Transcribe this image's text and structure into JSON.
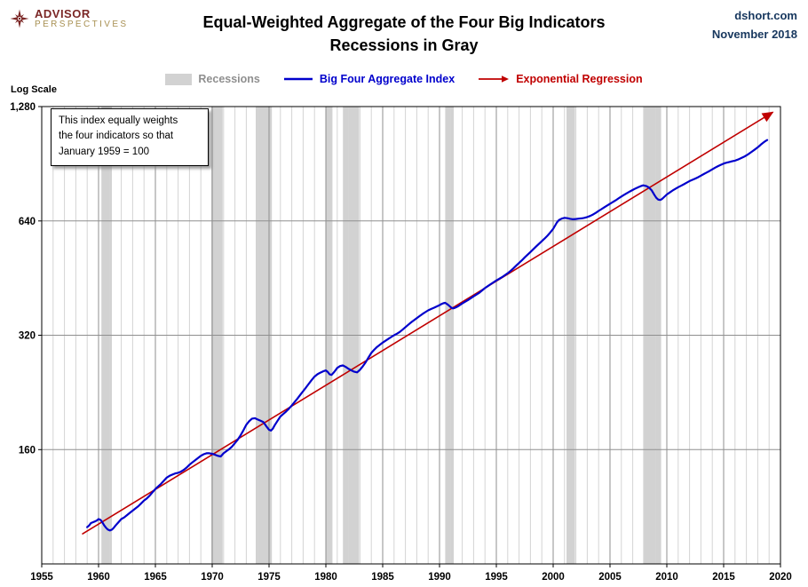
{
  "header": {
    "logo": {
      "line1": "ADVISOR",
      "line2": "PERSPECTIVES",
      "icon": "compass-star-icon",
      "icon_color": "#7b2726"
    },
    "title_line1": "Equal-Weighted Aggregate of the Four Big Indicators",
    "title_line2": "Recessions in Gray",
    "source": "dshort.com",
    "date": "November 2018"
  },
  "legend": {
    "items": [
      {
        "label": "Recessions",
        "type": "band",
        "color": "#d2d2d2",
        "text_color": "#8f8f8f"
      },
      {
        "label": "Big Four Aggregate Index",
        "type": "line",
        "color": "#0000cc",
        "text_color": "#0000cc"
      },
      {
        "label": "Exponential Regression",
        "type": "arrow-line",
        "color": "#c00000",
        "text_color": "#c00000"
      }
    ]
  },
  "axis_note": "Log Scale",
  "annotation": {
    "lines": [
      "This index equally weights",
      "the four indicators  so that",
      "January 1959 = 100"
    ]
  },
  "chart_data": {
    "type": "line",
    "title": "Equal-Weighted Aggregate of the Four Big Indicators (Recessions in Gray)",
    "ylabel": "Index (Log Scale, January 1959 = 100)",
    "xlabel": "",
    "legend_position": "top",
    "grid": {
      "minor_x_interval": 1,
      "major_x_interval": 5,
      "minor_color": "#d4d4d4",
      "major_color": "#8f8f8f"
    },
    "x_axis": {
      "min": 1955,
      "max": 2020,
      "ticks": [
        {
          "value": 1955,
          "label": "1955"
        },
        {
          "value": 1960,
          "label": "1960"
        },
        {
          "value": 1965,
          "label": "1965"
        },
        {
          "value": 1970,
          "label": "1970"
        },
        {
          "value": 1975,
          "label": "1975"
        },
        {
          "value": 1980,
          "label": "1980"
        },
        {
          "value": 1985,
          "label": "1985"
        },
        {
          "value": 1990,
          "label": "1990"
        },
        {
          "value": 1995,
          "label": "1995"
        },
        {
          "value": 2000,
          "label": "2000"
        },
        {
          "value": 2005,
          "label": "2005"
        },
        {
          "value": 2010,
          "label": "2010"
        },
        {
          "value": 2015,
          "label": "2015"
        },
        {
          "value": 2020,
          "label": "2020"
        }
      ]
    },
    "y_axis": {
      "scale": "log2",
      "min": 80,
      "max": 1280,
      "ticks": [
        {
          "value": 1280,
          "label": "1,280"
        },
        {
          "value": 640,
          "label": "640"
        },
        {
          "value": 320,
          "label": "320"
        },
        {
          "value": 160,
          "label": "160"
        }
      ]
    },
    "recession_color": "#d2d2d2",
    "recessions": [
      [
        1960.25,
        1961.17
      ],
      [
        1969.92,
        1970.92
      ],
      [
        1973.83,
        1975.25
      ],
      [
        1980.0,
        1980.58
      ],
      [
        1981.5,
        1982.92
      ],
      [
        1990.5,
        1991.25
      ],
      [
        2001.17,
        2001.92
      ],
      [
        2007.92,
        2009.5
      ]
    ],
    "series": [
      {
        "name": "Exponential Regression",
        "color": "#c00000",
        "width": 1.6,
        "arrow_end": true,
        "points": [
          [
            1958.6,
            96
          ],
          [
            2019.3,
            1235
          ]
        ]
      },
      {
        "name": "Big Four Aggregate Index",
        "color": "#0000cc",
        "width": 2.2,
        "arrow_end": false,
        "points": [
          [
            1959.0,
            100
          ],
          [
            1959.17,
            101
          ],
          [
            1959.33,
            102.5
          ],
          [
            1959.5,
            103
          ],
          [
            1959.67,
            103.5
          ],
          [
            1959.83,
            104
          ],
          [
            1960.0,
            105
          ],
          [
            1960.17,
            104.5
          ],
          [
            1960.33,
            103
          ],
          [
            1960.5,
            101
          ],
          [
            1960.67,
            99.5
          ],
          [
            1960.83,
            98.5
          ],
          [
            1961.0,
            98
          ],
          [
            1961.17,
            98.5
          ],
          [
            1961.33,
            99.5
          ],
          [
            1961.5,
            101
          ],
          [
            1961.75,
            103
          ],
          [
            1962.0,
            105
          ],
          [
            1962.25,
            106
          ],
          [
            1962.5,
            107.5
          ],
          [
            1962.75,
            109
          ],
          [
            1963.0,
            110.5
          ],
          [
            1963.25,
            112
          ],
          [
            1963.5,
            113.5
          ],
          [
            1963.75,
            115.5
          ],
          [
            1964.0,
            117.5
          ],
          [
            1964.25,
            119
          ],
          [
            1964.5,
            121
          ],
          [
            1964.75,
            123.5
          ],
          [
            1965.0,
            126
          ],
          [
            1965.25,
            128
          ],
          [
            1965.5,
            130
          ],
          [
            1965.75,
            132.5
          ],
          [
            1966.0,
            135
          ],
          [
            1966.25,
            136.5
          ],
          [
            1966.5,
            137.5
          ],
          [
            1966.75,
            138.5
          ],
          [
            1967.0,
            139
          ],
          [
            1967.25,
            140
          ],
          [
            1967.5,
            141.5
          ],
          [
            1967.75,
            143.5
          ],
          [
            1968.0,
            146
          ],
          [
            1968.25,
            148
          ],
          [
            1968.5,
            150
          ],
          [
            1968.75,
            152
          ],
          [
            1969.0,
            154
          ],
          [
            1969.25,
            155.5
          ],
          [
            1969.5,
            156.5
          ],
          [
            1969.75,
            156.5
          ],
          [
            1970.0,
            156
          ],
          [
            1970.25,
            155
          ],
          [
            1970.5,
            154
          ],
          [
            1970.75,
            153.5
          ],
          [
            1971.0,
            156.5
          ],
          [
            1971.25,
            158.5
          ],
          [
            1971.5,
            160.5
          ],
          [
            1971.75,
            163
          ],
          [
            1972.0,
            166.5
          ],
          [
            1972.25,
            170
          ],
          [
            1972.5,
            174.5
          ],
          [
            1972.75,
            180
          ],
          [
            1973.0,
            186
          ],
          [
            1973.25,
            190
          ],
          [
            1973.5,
            193
          ],
          [
            1973.75,
            193.5
          ],
          [
            1974.0,
            192
          ],
          [
            1974.25,
            190.5
          ],
          [
            1974.5,
            189
          ],
          [
            1974.75,
            184.5
          ],
          [
            1975.0,
            180.5
          ],
          [
            1975.17,
            179.5
          ],
          [
            1975.33,
            181.5
          ],
          [
            1975.5,
            185.5
          ],
          [
            1975.75,
            190.5
          ],
          [
            1976.0,
            195.5
          ],
          [
            1976.25,
            198.5
          ],
          [
            1976.5,
            201.5
          ],
          [
            1976.75,
            205
          ],
          [
            1977.0,
            209
          ],
          [
            1977.25,
            213.5
          ],
          [
            1977.5,
            218
          ],
          [
            1977.75,
            223
          ],
          [
            1978.0,
            228
          ],
          [
            1978.25,
            233
          ],
          [
            1978.5,
            238.5
          ],
          [
            1978.75,
            244
          ],
          [
            1979.0,
            249
          ],
          [
            1979.25,
            252.5
          ],
          [
            1979.5,
            255
          ],
          [
            1979.75,
            257
          ],
          [
            1980.0,
            258.5
          ],
          [
            1980.17,
            256
          ],
          [
            1980.33,
            252.5
          ],
          [
            1980.5,
            251.5
          ],
          [
            1980.75,
            256.5
          ],
          [
            1981.0,
            262.5
          ],
          [
            1981.25,
            265.5
          ],
          [
            1981.5,
            266.5
          ],
          [
            1981.75,
            264
          ],
          [
            1982.0,
            261
          ],
          [
            1982.25,
            258.5
          ],
          [
            1982.5,
            256.5
          ],
          [
            1982.75,
            255.5
          ],
          [
            1983.0,
            259.5
          ],
          [
            1983.25,
            265
          ],
          [
            1983.5,
            271.5
          ],
          [
            1983.75,
            279.5
          ],
          [
            1984.0,
            287.5
          ],
          [
            1984.25,
            293
          ],
          [
            1984.5,
            298
          ],
          [
            1984.75,
            302
          ],
          [
            1985.0,
            306
          ],
          [
            1985.25,
            309.5
          ],
          [
            1985.5,
            313
          ],
          [
            1985.75,
            316.5
          ],
          [
            1986.0,
            320
          ],
          [
            1986.25,
            323
          ],
          [
            1986.5,
            326.5
          ],
          [
            1986.75,
            331
          ],
          [
            1987.0,
            336
          ],
          [
            1987.25,
            341
          ],
          [
            1987.5,
            346
          ],
          [
            1987.75,
            350.5
          ],
          [
            1988.0,
            355
          ],
          [
            1988.25,
            359.5
          ],
          [
            1988.5,
            364
          ],
          [
            1988.75,
            368
          ],
          [
            1989.0,
            372
          ],
          [
            1989.25,
            375
          ],
          [
            1989.5,
            378
          ],
          [
            1989.75,
            381
          ],
          [
            1990.0,
            384
          ],
          [
            1990.17,
            386.5
          ],
          [
            1990.33,
            388.5
          ],
          [
            1990.5,
            389.5
          ],
          [
            1990.75,
            385
          ],
          [
            1991.0,
            379
          ],
          [
            1991.17,
            376.5
          ],
          [
            1991.33,
            377.5
          ],
          [
            1991.5,
            379.5
          ],
          [
            1991.75,
            383.5
          ],
          [
            1992.0,
            388
          ],
          [
            1992.25,
            392
          ],
          [
            1992.5,
            396
          ],
          [
            1992.75,
            400.5
          ],
          [
            1993.0,
            405
          ],
          [
            1993.25,
            409.5
          ],
          [
            1993.5,
            414
          ],
          [
            1993.75,
            420
          ],
          [
            1994.0,
            426
          ],
          [
            1994.25,
            431
          ],
          [
            1994.5,
            436
          ],
          [
            1994.75,
            441
          ],
          [
            1995.0,
            446
          ],
          [
            1995.25,
            450.5
          ],
          [
            1995.5,
            455
          ],
          [
            1995.75,
            460.5
          ],
          [
            1996.0,
            466
          ],
          [
            1996.25,
            472.5
          ],
          [
            1996.5,
            480
          ],
          [
            1996.75,
            488
          ],
          [
            1997.0,
            496
          ],
          [
            1997.25,
            504
          ],
          [
            1997.5,
            513
          ],
          [
            1997.75,
            521.5
          ],
          [
            1998.0,
            530
          ],
          [
            1998.25,
            539
          ],
          [
            1998.5,
            548
          ],
          [
            1998.75,
            557
          ],
          [
            1999.0,
            566
          ],
          [
            1999.25,
            575
          ],
          [
            1999.5,
            585
          ],
          [
            1999.75,
            597
          ],
          [
            2000.0,
            610
          ],
          [
            2000.17,
            622
          ],
          [
            2000.33,
            634
          ],
          [
            2000.5,
            643
          ],
          [
            2000.75,
            649
          ],
          [
            2001.0,
            652
          ],
          [
            2001.25,
            650.5
          ],
          [
            2001.5,
            648
          ],
          [
            2001.75,
            646.5
          ],
          [
            2002.0,
            647.5
          ],
          [
            2002.25,
            649
          ],
          [
            2002.5,
            650
          ],
          [
            2002.75,
            652
          ],
          [
            2003.0,
            655
          ],
          [
            2003.25,
            659.5
          ],
          [
            2003.5,
            665
          ],
          [
            2003.75,
            672
          ],
          [
            2004.0,
            680
          ],
          [
            2004.25,
            687.5
          ],
          [
            2004.5,
            695
          ],
          [
            2004.75,
            702.5
          ],
          [
            2005.0,
            710
          ],
          [
            2005.25,
            717.5
          ],
          [
            2005.5,
            725
          ],
          [
            2005.75,
            733.5
          ],
          [
            2006.0,
            742
          ],
          [
            2006.25,
            750
          ],
          [
            2006.5,
            757.5
          ],
          [
            2006.75,
            765
          ],
          [
            2007.0,
            772
          ],
          [
            2007.25,
            779
          ],
          [
            2007.5,
            785
          ],
          [
            2007.75,
            791
          ],
          [
            2007.92,
            794
          ],
          [
            2008.17,
            791
          ],
          [
            2008.42,
            784
          ],
          [
            2008.67,
            770
          ],
          [
            2008.92,
            748
          ],
          [
            2009.08,
            736
          ],
          [
            2009.25,
            728
          ],
          [
            2009.42,
            727
          ],
          [
            2009.58,
            731
          ],
          [
            2009.75,
            739
          ],
          [
            2010.0,
            751
          ],
          [
            2010.25,
            760
          ],
          [
            2010.5,
            769
          ],
          [
            2010.75,
            777
          ],
          [
            2011.0,
            785
          ],
          [
            2011.25,
            792
          ],
          [
            2011.5,
            799
          ],
          [
            2011.75,
            807
          ],
          [
            2012.0,
            815
          ],
          [
            2012.25,
            821
          ],
          [
            2012.5,
            827
          ],
          [
            2012.75,
            834
          ],
          [
            2013.0,
            842
          ],
          [
            2013.25,
            850
          ],
          [
            2013.5,
            858
          ],
          [
            2013.75,
            866
          ],
          [
            2014.0,
            875
          ],
          [
            2014.25,
            884
          ],
          [
            2014.5,
            892
          ],
          [
            2014.75,
            899
          ],
          [
            2015.0,
            906
          ],
          [
            2015.25,
            911
          ],
          [
            2015.5,
            915
          ],
          [
            2015.75,
            918.5
          ],
          [
            2016.0,
            922
          ],
          [
            2016.25,
            928
          ],
          [
            2016.5,
            935
          ],
          [
            2016.75,
            943
          ],
          [
            2017.0,
            952
          ],
          [
            2017.25,
            963
          ],
          [
            2017.5,
            975
          ],
          [
            2017.75,
            987
          ],
          [
            2018.0,
            1000
          ],
          [
            2018.17,
            1010
          ],
          [
            2018.33,
            1020
          ],
          [
            2018.5,
            1029
          ],
          [
            2018.67,
            1038
          ],
          [
            2018.83,
            1045
          ]
        ]
      }
    ]
  }
}
